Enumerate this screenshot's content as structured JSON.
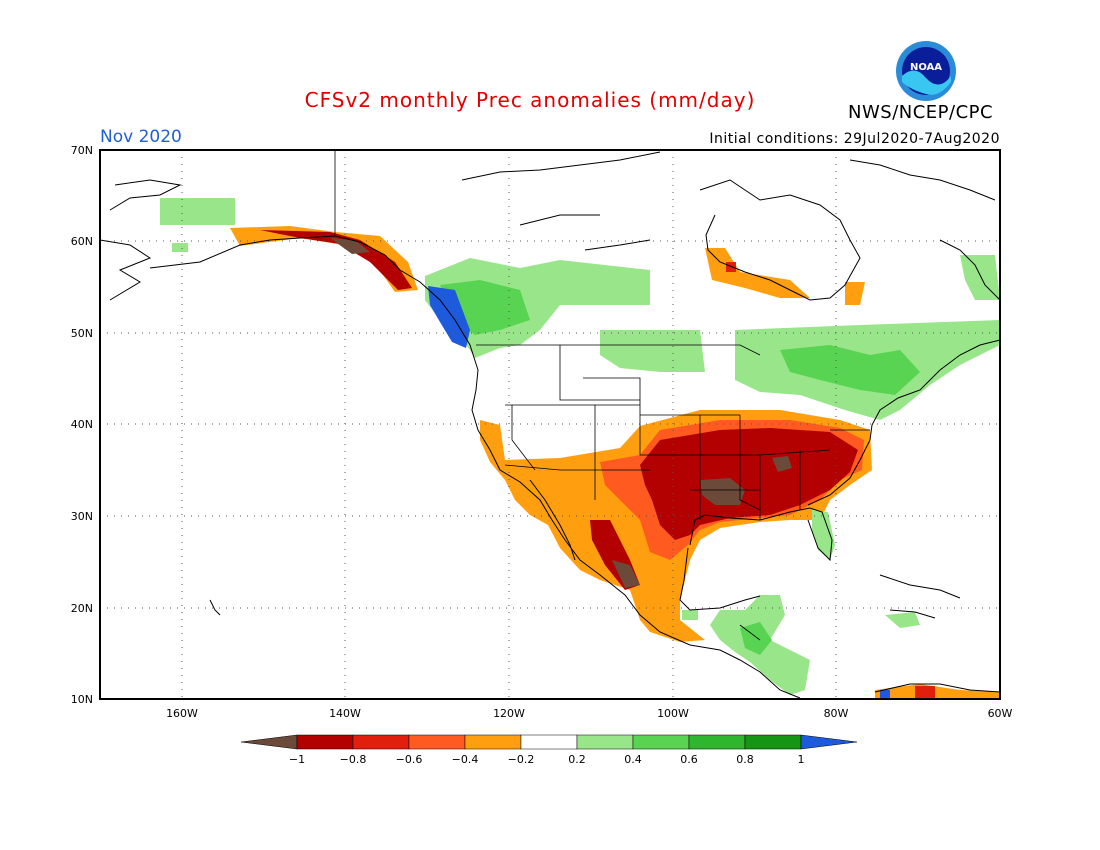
{
  "title": "CFSv2 monthly Prec anomalies (mm/day)",
  "org": "NWS/NCEP/CPC",
  "month": "Nov 2020",
  "initial_conditions": "Initial conditions: 29Jul2020-7Aug2020",
  "logo_text": "NOAA",
  "lat_labels": [
    "70N",
    "60N",
    "50N",
    "40N",
    "30N",
    "20N",
    "10N"
  ],
  "lon_labels": [
    "160W",
    "140W",
    "120W",
    "100W",
    "80W",
    "60W"
  ],
  "colorbar": {
    "labels": [
      "−1",
      "−0.8",
      "−0.6",
      "−0.4",
      "−0.2",
      "0.2",
      "0.4",
      "0.6",
      "0.8",
      "1"
    ],
    "colors": [
      "#6b4a3a",
      "#b30000",
      "#e0200c",
      "#ff5a1f",
      "#ff9f10",
      "#ffffff",
      "#99e68a",
      "#58d452",
      "#2fb62f",
      "#149614",
      "#1e5adc"
    ]
  },
  "colors": {
    "title": "#e00000",
    "month": "#1f5fd6"
  }
}
